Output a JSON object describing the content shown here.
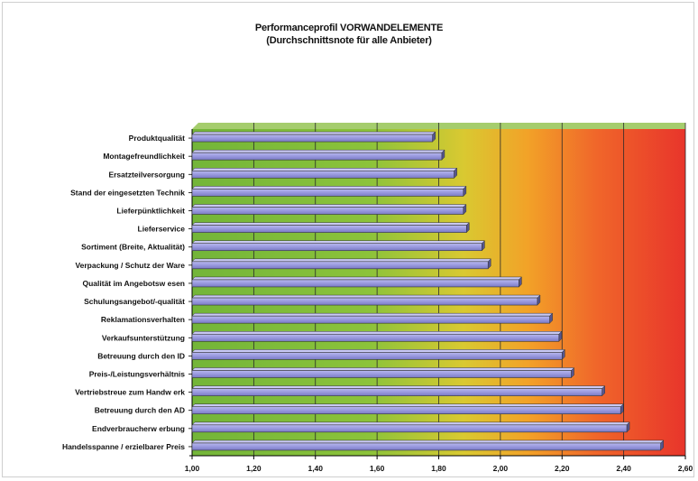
{
  "chart_data": {
    "type": "bar",
    "orientation": "horizontal",
    "title": "Performanceprofil VORWANDELEMENTE",
    "subtitle": "(Durchschnittsnote für alle Anbieter)",
    "categories": [
      "Produktqualität",
      "Montagefreundlichkeit",
      "Ersatzteilversorgung",
      "Stand der eingesetzten Technik",
      "Lieferpünktlichkeit",
      "Lieferservice",
      "Sortiment (Breite, Aktualität)",
      "Verpackung / Schutz der Ware",
      "Qualität im Angebotsw esen",
      "Schulungsangebot/-qualität",
      "Reklamationsverhalten",
      "Verkaufsunterstützung",
      "Betreuung durch den ID",
      "Preis-/Leistungsverhältnis",
      "Vertriebstreue zum Handw erk",
      "Betreuung durch den AD",
      "Endverbraucherw erbung",
      "Handelsspanne / erzielbarer Preis"
    ],
    "values": [
      1.78,
      1.81,
      1.85,
      1.88,
      1.88,
      1.89,
      1.94,
      1.96,
      2.06,
      2.12,
      2.16,
      2.19,
      2.2,
      2.23,
      2.33,
      2.39,
      2.41,
      2.52
    ],
    "xlim": [
      1.0,
      2.6
    ],
    "xticks": [
      "1,00",
      "1,20",
      "1,40",
      "1,60",
      "1,80",
      "2,00",
      "2,20",
      "2,40",
      "2,60"
    ],
    "grid": true,
    "bar_color": "#9a9ade",
    "background_gradient": [
      "#6cb336",
      "#d7c332",
      "#f06a24",
      "#e8322c"
    ]
  }
}
